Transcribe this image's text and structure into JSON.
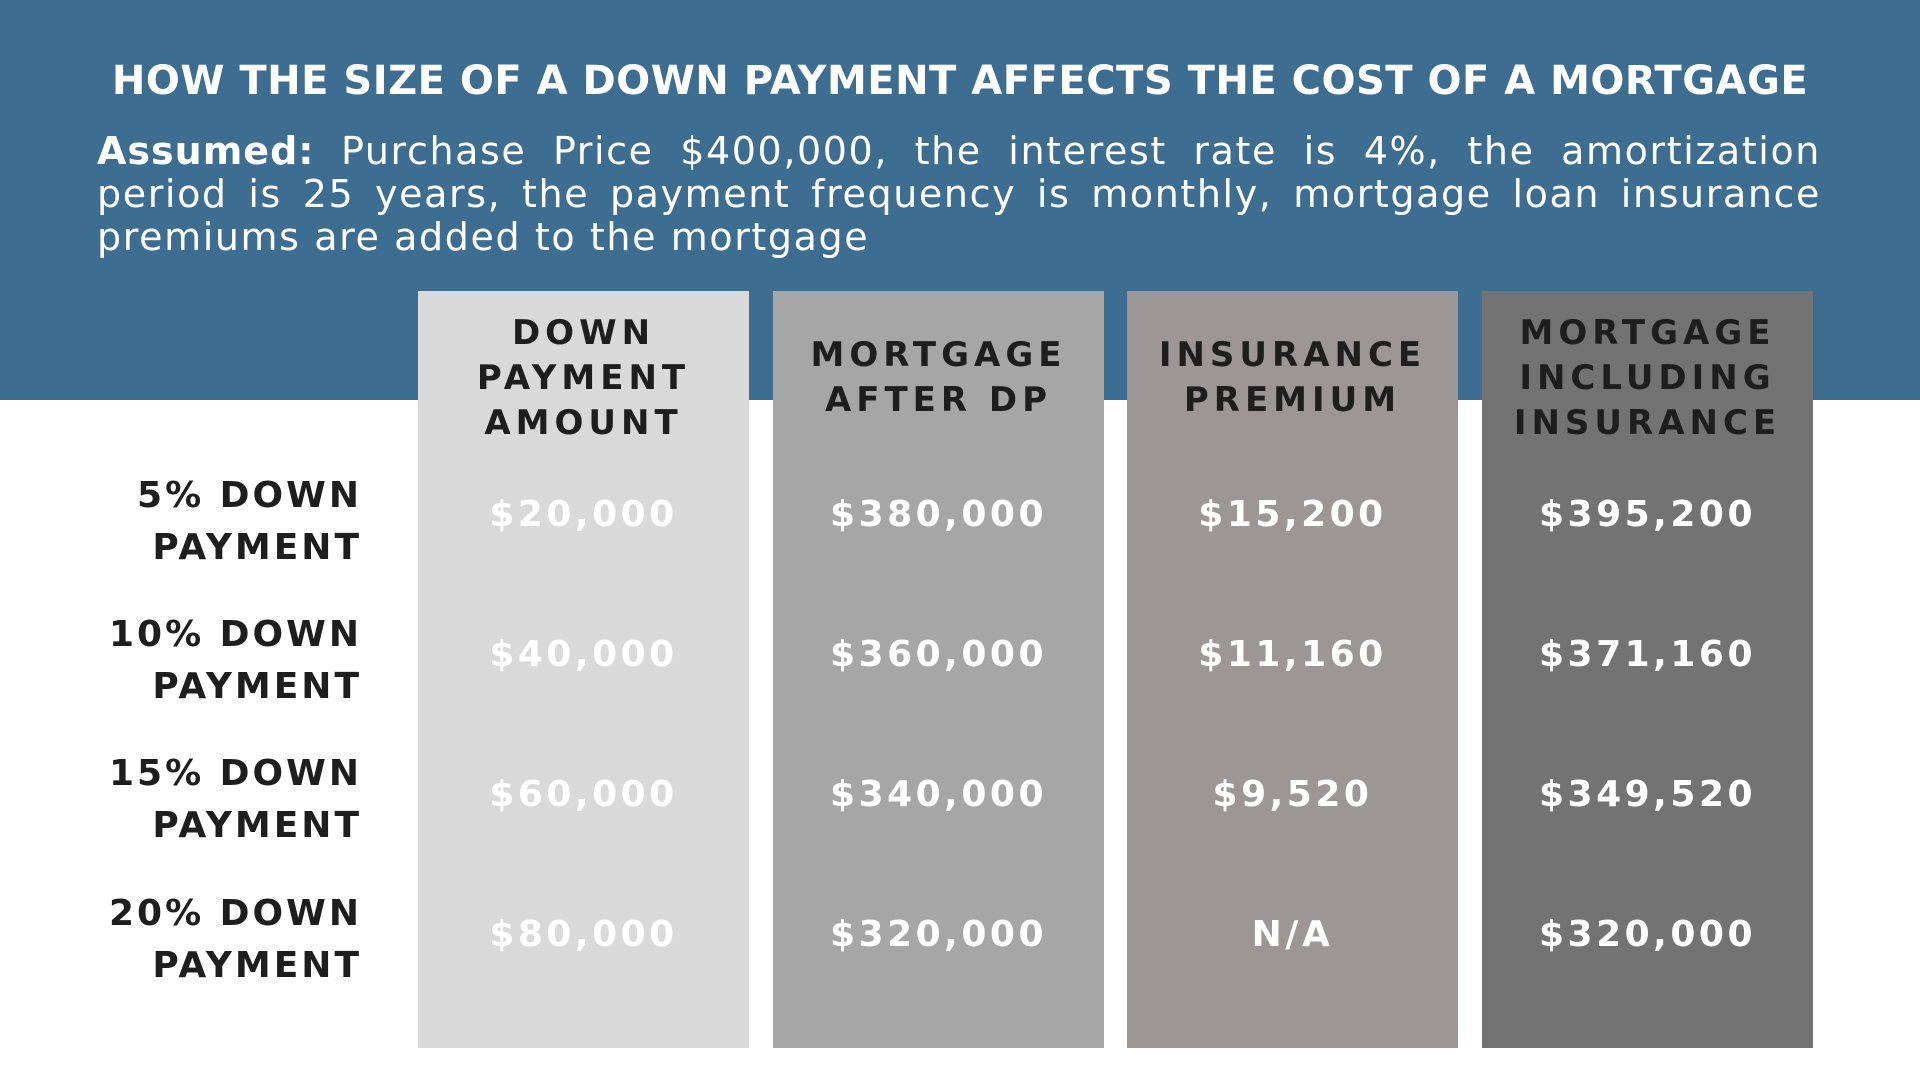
{
  "title": "HOW THE SIZE OF A DOWN PAYMENT AFFECTS THE COST OF A MORTGAGE",
  "assumptions": {
    "label": "Assumed:",
    "text": " Purchase Price $400,000, the interest rate is 4%, the amortization period is 25 years, the payment frequency is monthly, mortgage loan insurance premiums are added to the mortgage"
  },
  "colors": {
    "banner": "#3d6d90",
    "column_1": "#d9d9d9",
    "column_2": "#a6a6a6",
    "column_3": "#9c9796",
    "column_4": "#737373"
  },
  "table": {
    "columns": [
      "DOWN\nPAYMENT\nAMOUNT",
      "MORTGAGE\nAFTER DP",
      "INSURANCE\nPREMIUM",
      "MORTGAGE\nINCLUDING\nINSURANCE"
    ],
    "rows": [
      {
        "label": "5% DOWN\nPAYMENT",
        "cells": [
          "$20,000",
          "$380,000",
          "$15,200",
          "$395,200"
        ]
      },
      {
        "label": "10% DOWN\nPAYMENT",
        "cells": [
          "$40,000",
          "$360,000",
          "$11,160",
          "$371,160"
        ]
      },
      {
        "label": "15% DOWN\nPAYMENT",
        "cells": [
          "$60,000",
          "$340,000",
          "$9,520",
          "$349,520"
        ]
      },
      {
        "label": "20% DOWN\nPAYMENT",
        "cells": [
          "$80,000",
          "$320,000",
          "N/A",
          "$320,000"
        ]
      }
    ]
  }
}
